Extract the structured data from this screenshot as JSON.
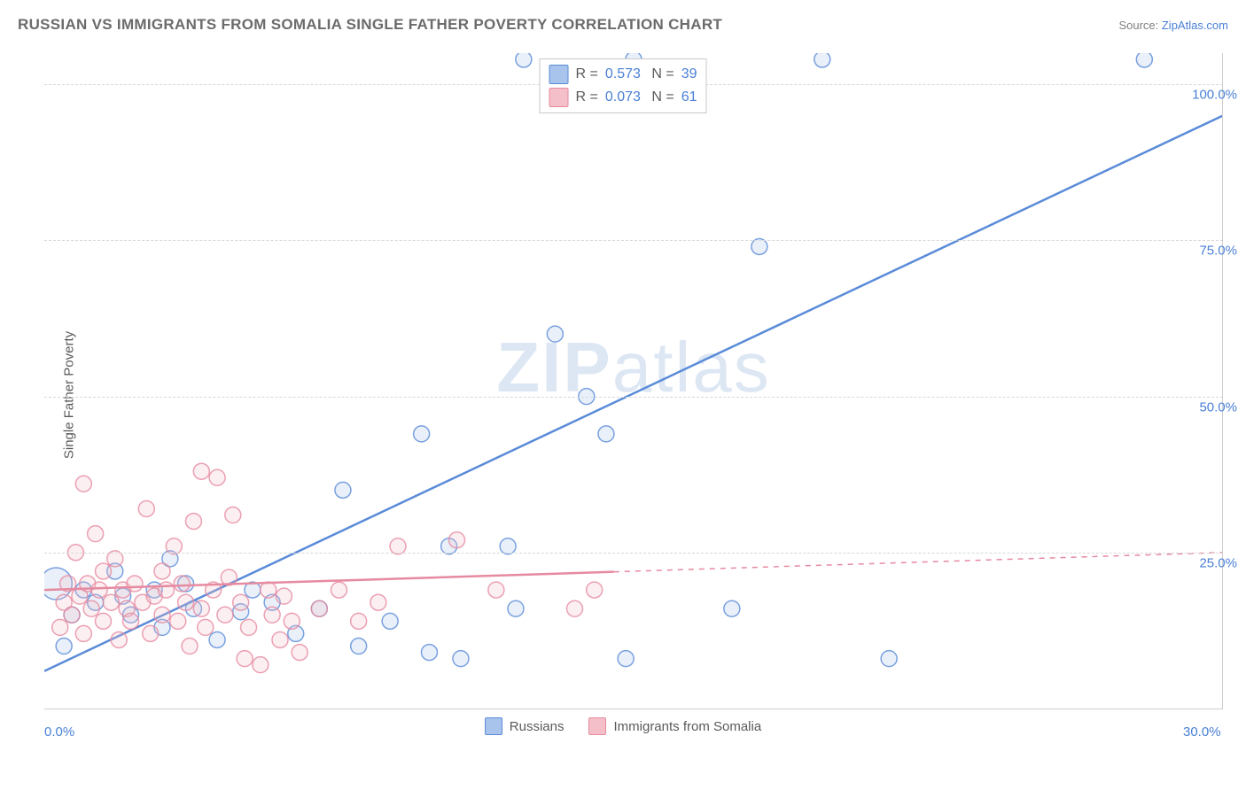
{
  "header": {
    "title": "RUSSIAN VS IMMIGRANTS FROM SOMALIA SINGLE FATHER POVERTY CORRELATION CHART",
    "source_prefix": "Source: ",
    "source_name": "ZipAtlas.com"
  },
  "chart": {
    "type": "scatter",
    "ylabel": "Single Father Poverty",
    "watermark": "ZIPatlas",
    "background_color": "#ffffff",
    "grid_color": "#d8d8d8",
    "axis_color": "#cfcfcf",
    "tick_label_color": "#4a80d6",
    "text_color": "#5a5a5a",
    "marker_radius": 9,
    "marker_fill_opacity": 0.25,
    "marker_stroke_opacity": 0.8,
    "trendline_width": 2.5,
    "xlim": [
      0,
      30
    ],
    "ylim": [
      0,
      105
    ],
    "xticks": [
      {
        "v": 0,
        "label": "0.0%"
      },
      {
        "v": 30,
        "label": "30.0%"
      }
    ],
    "yticks": [
      {
        "v": 25,
        "label": "25.0%"
      },
      {
        "v": 50,
        "label": "50.0%"
      },
      {
        "v": 75,
        "label": "75.0%"
      },
      {
        "v": 100,
        "label": "100.0%"
      }
    ],
    "bottom_legend": [
      {
        "label": "Russians",
        "fill": "#a9c4ec",
        "stroke": "#5a8bd8"
      },
      {
        "label": "Immigrants from Somalia",
        "fill": "#f4bfc9",
        "stroke": "#e68aa0"
      }
    ],
    "stat_legend": [
      {
        "fill": "#a9c4ec",
        "stroke": "#5a8bd8",
        "r": "0.573",
        "n": "39"
      },
      {
        "fill": "#f4bfc9",
        "stroke": "#e68aa0",
        "r": "0.073",
        "n": "61"
      }
    ],
    "series": [
      {
        "name": "Russians",
        "fill": "#a9c4ec",
        "stroke": "#5a8bd8",
        "trend": {
          "x1": 0,
          "y1": 6,
          "x2": 30,
          "y2": 95,
          "solid_until_x": 30
        },
        "points": [
          [
            0.3,
            20,
            18
          ],
          [
            0.5,
            10
          ],
          [
            0.7,
            15
          ],
          [
            1.0,
            19
          ],
          [
            1.3,
            17
          ],
          [
            1.8,
            22
          ],
          [
            2.0,
            18
          ],
          [
            2.2,
            15
          ],
          [
            2.8,
            19
          ],
          [
            3.0,
            13
          ],
          [
            3.2,
            24
          ],
          [
            3.6,
            20
          ],
          [
            3.8,
            16
          ],
          [
            4.4,
            11
          ],
          [
            5.0,
            15.5
          ],
          [
            5.3,
            19
          ],
          [
            5.8,
            17
          ],
          [
            6.4,
            12
          ],
          [
            7.0,
            16
          ],
          [
            7.6,
            35
          ],
          [
            8.0,
            10
          ],
          [
            8.8,
            14
          ],
          [
            9.6,
            44
          ],
          [
            9.8,
            9
          ],
          [
            10.3,
            26
          ],
          [
            10.6,
            8
          ],
          [
            11.8,
            26
          ],
          [
            12.0,
            16
          ],
          [
            12.2,
            104
          ],
          [
            13.0,
            60
          ],
          [
            13.8,
            50
          ],
          [
            14.3,
            44
          ],
          [
            14.8,
            8
          ],
          [
            15.0,
            104
          ],
          [
            17.5,
            16
          ],
          [
            18.2,
            74
          ],
          [
            19.8,
            104
          ],
          [
            21.5,
            8
          ],
          [
            28.0,
            104
          ]
        ]
      },
      {
        "name": "Immigrants from Somalia",
        "fill": "#f4bfc9",
        "stroke": "#e68aa0",
        "trend": {
          "x1": 0,
          "y1": 19,
          "x2": 30,
          "y2": 25,
          "solid_until_x": 14.5
        },
        "points": [
          [
            0.4,
            13
          ],
          [
            0.5,
            17
          ],
          [
            0.6,
            20
          ],
          [
            0.7,
            15
          ],
          [
            0.8,
            25
          ],
          [
            0.9,
            18
          ],
          [
            1.0,
            12
          ],
          [
            1.0,
            36
          ],
          [
            1.1,
            20
          ],
          [
            1.2,
            16
          ],
          [
            1.3,
            28
          ],
          [
            1.4,
            19
          ],
          [
            1.5,
            14
          ],
          [
            1.5,
            22
          ],
          [
            1.7,
            17
          ],
          [
            1.8,
            24
          ],
          [
            1.9,
            11
          ],
          [
            2.0,
            19
          ],
          [
            2.1,
            16
          ],
          [
            2.2,
            14
          ],
          [
            2.3,
            20
          ],
          [
            2.5,
            17
          ],
          [
            2.6,
            32
          ],
          [
            2.7,
            12
          ],
          [
            2.8,
            18
          ],
          [
            3.0,
            15
          ],
          [
            3.0,
            22
          ],
          [
            3.1,
            19
          ],
          [
            3.3,
            26
          ],
          [
            3.4,
            14
          ],
          [
            3.5,
            20
          ],
          [
            3.6,
            17
          ],
          [
            3.7,
            10
          ],
          [
            3.8,
            30
          ],
          [
            4.0,
            38
          ],
          [
            4.0,
            16
          ],
          [
            4.1,
            13
          ],
          [
            4.3,
            19
          ],
          [
            4.4,
            37
          ],
          [
            4.6,
            15
          ],
          [
            4.7,
            21
          ],
          [
            4.8,
            31
          ],
          [
            5.0,
            17
          ],
          [
            5.1,
            8
          ],
          [
            5.2,
            13
          ],
          [
            5.5,
            7
          ],
          [
            5.7,
            19
          ],
          [
            5.8,
            15
          ],
          [
            6.0,
            11
          ],
          [
            6.1,
            18
          ],
          [
            6.3,
            14
          ],
          [
            6.5,
            9
          ],
          [
            7.0,
            16
          ],
          [
            7.5,
            19
          ],
          [
            8.0,
            14
          ],
          [
            8.5,
            17
          ],
          [
            9.0,
            26
          ],
          [
            10.5,
            27
          ],
          [
            11.5,
            19
          ],
          [
            13.5,
            16
          ],
          [
            14.0,
            19
          ]
        ]
      }
    ]
  }
}
